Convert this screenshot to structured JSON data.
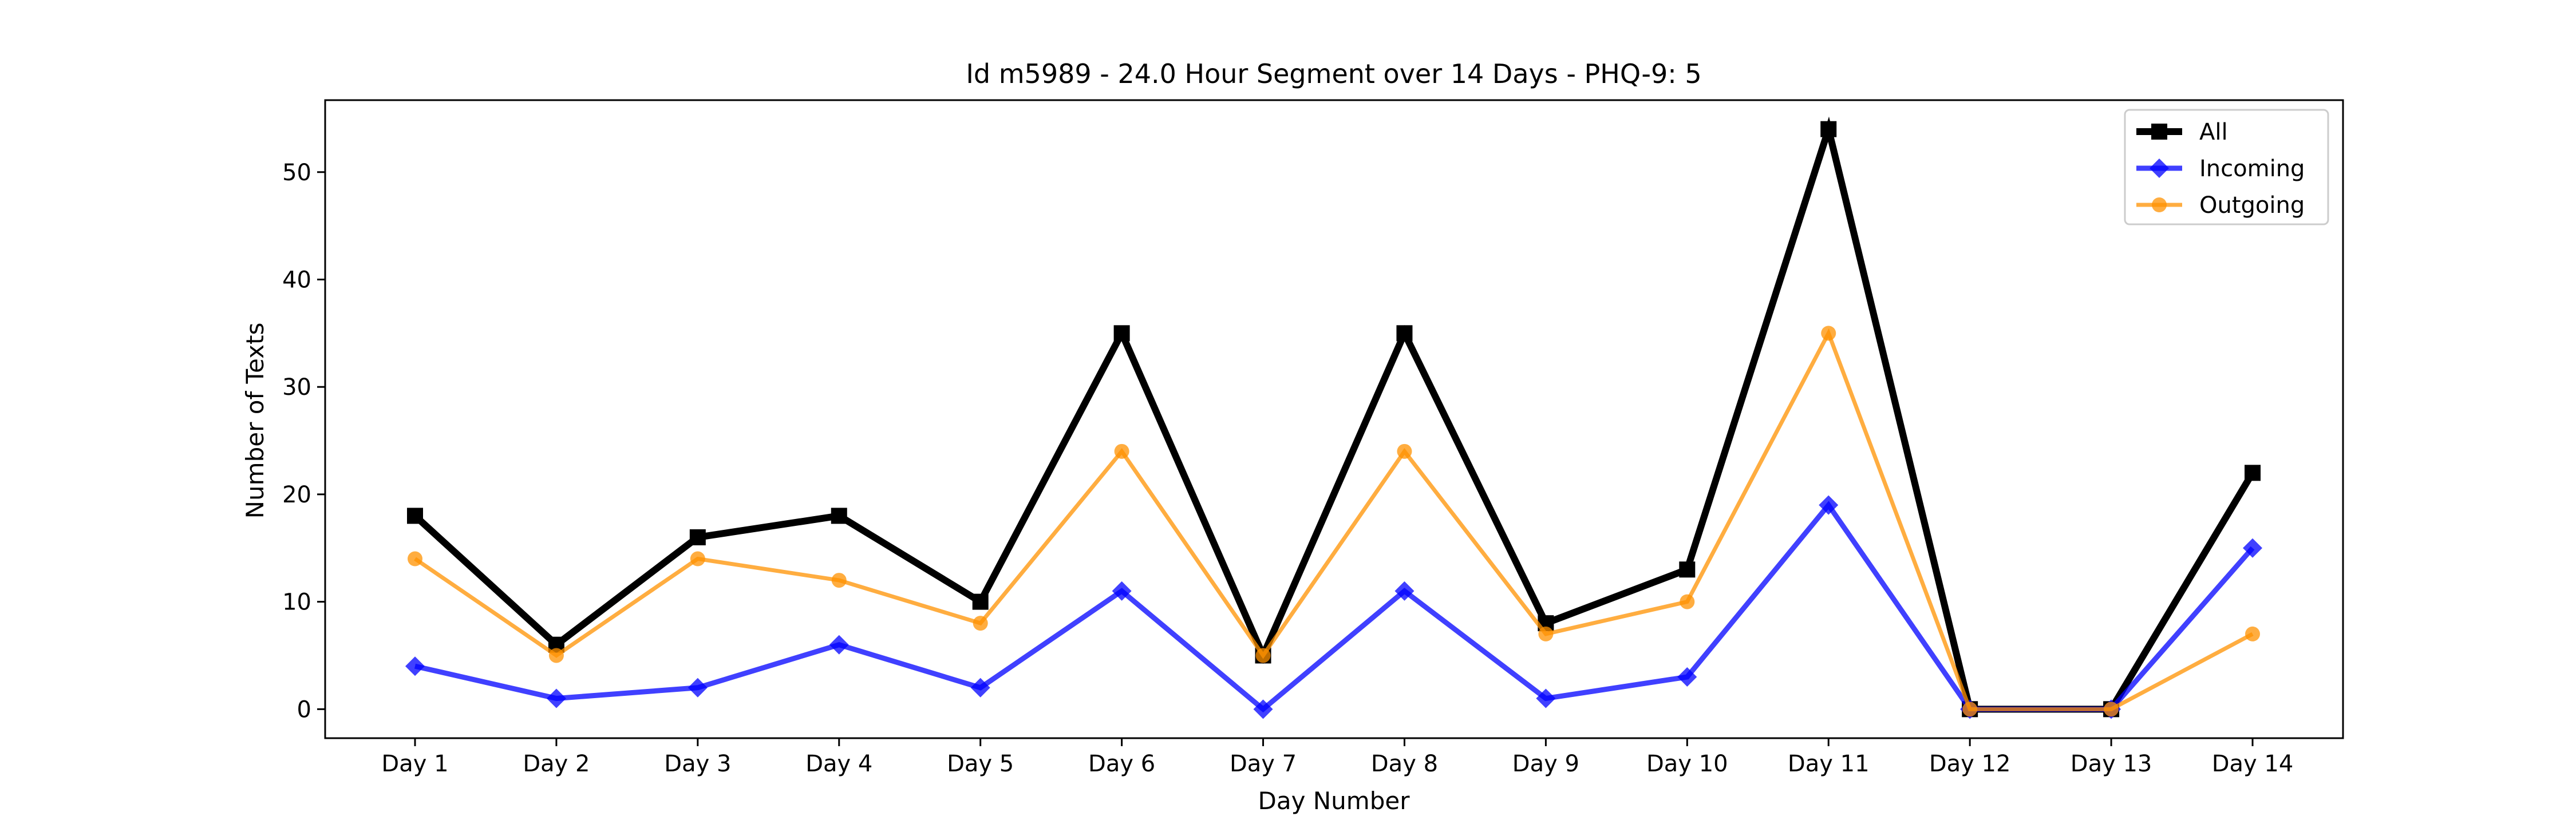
{
  "chart_data": {
    "type": "line",
    "title": "Id m5989 - 24.0 Hour Segment over 14 Days - PHQ-9: 5",
    "xlabel": "Day Number",
    "ylabel": "Number of Texts",
    "categories": [
      "Day 1",
      "Day 2",
      "Day 3",
      "Day 4",
      "Day 5",
      "Day 6",
      "Day 7",
      "Day 8",
      "Day 9",
      "Day 10",
      "Day 11",
      "Day 12",
      "Day 13",
      "Day 14"
    ],
    "yticks": [
      0,
      10,
      20,
      30,
      40,
      50
    ],
    "ylim": [
      -2.7,
      56.7
    ],
    "grid": false,
    "legend_position": "top-right",
    "series": [
      {
        "name": "All",
        "color": "#000000",
        "marker": "square",
        "values": [
          18,
          6,
          16,
          18,
          10,
          35,
          5,
          35,
          8,
          13,
          54,
          0,
          0,
          22
        ]
      },
      {
        "name": "Incoming",
        "color": "#0000ff",
        "marker": "diamond",
        "values": [
          4,
          1,
          2,
          6,
          2,
          11,
          0,
          11,
          1,
          3,
          19,
          0,
          0,
          15
        ]
      },
      {
        "name": "Outgoing",
        "color": "#ff9100",
        "marker": "circle",
        "values": [
          14,
          5,
          14,
          12,
          8,
          24,
          5,
          24,
          7,
          10,
          35,
          0,
          0,
          7
        ]
      }
    ]
  }
}
